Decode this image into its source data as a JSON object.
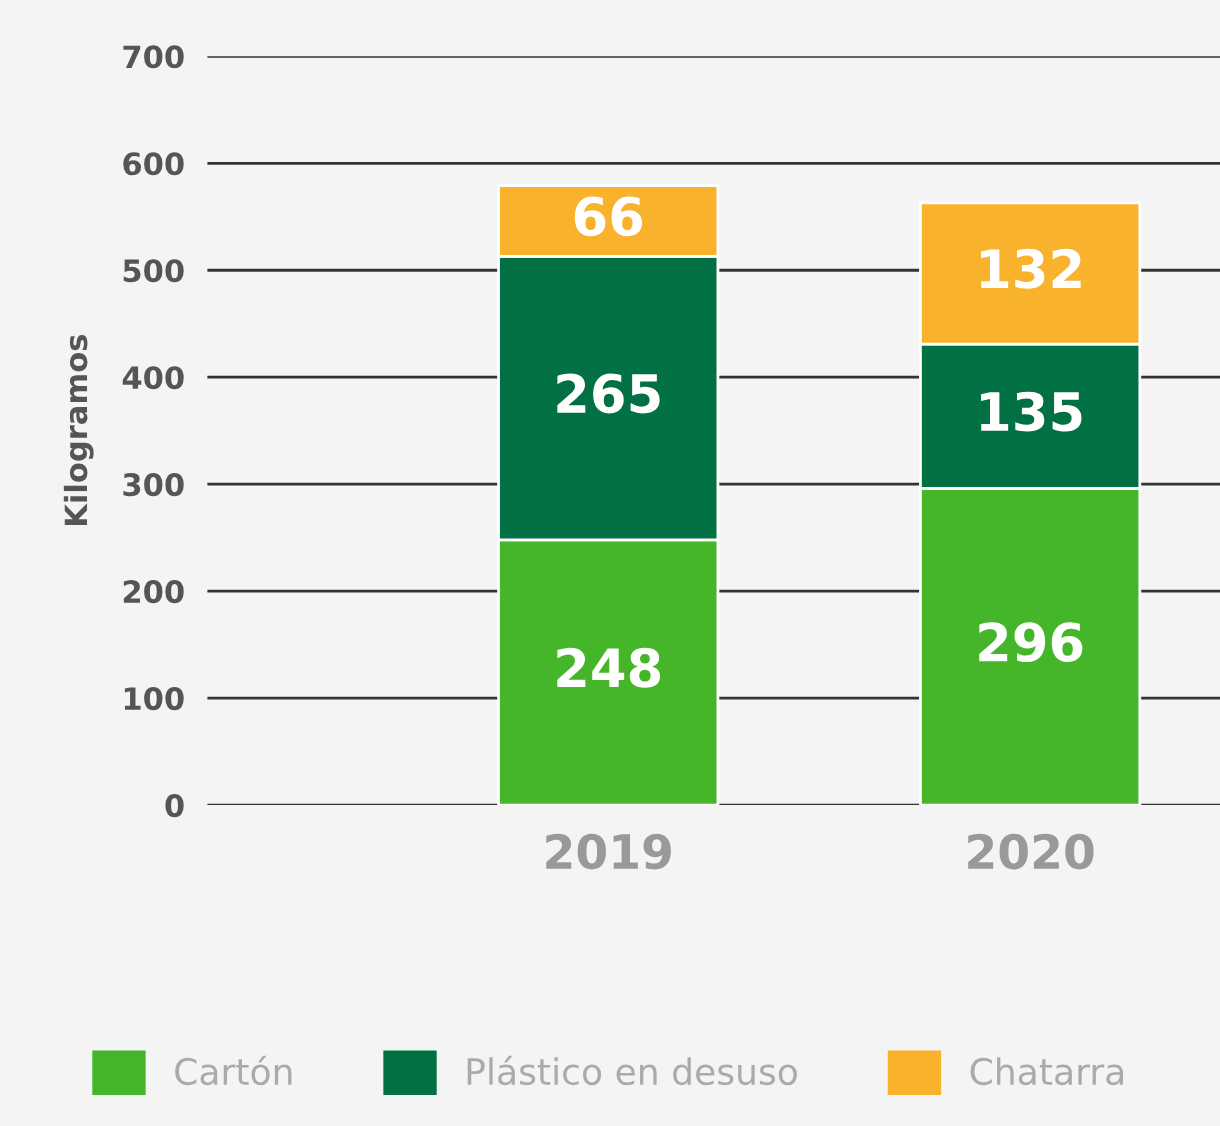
{
  "chart_data": {
    "type": "bar",
    "stacked": true,
    "ylabel": "Kilogramos",
    "categories": [
      "2019",
      "2020"
    ],
    "series": [
      {
        "name": "Cartón",
        "color": "#45b52a",
        "values": [
          248,
          296
        ]
      },
      {
        "name": "Plástico en desuso",
        "color": "#017042",
        "values": [
          265,
          135
        ]
      },
      {
        "name": "Chatarra",
        "color": "#f8b22b",
        "values": [
          66,
          132
        ]
      }
    ],
    "ylim": [
      0,
      700
    ],
    "yticks": [
      0,
      100,
      200,
      300,
      400,
      500,
      600,
      700
    ],
    "grid": "y",
    "legend": "bottom",
    "data_labels": true
  }
}
